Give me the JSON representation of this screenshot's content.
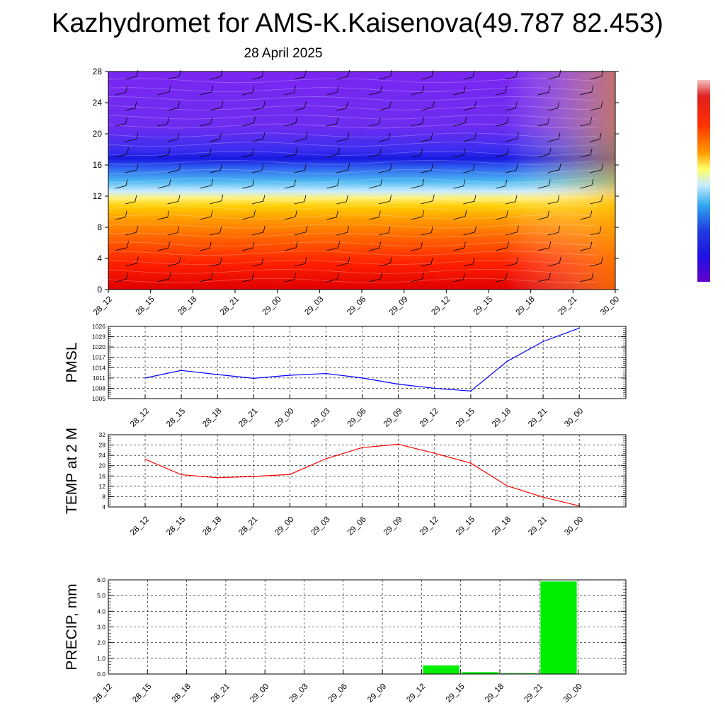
{
  "title": "Kazhydromet for AMS-K.Kaisenova(49.787 82.453)",
  "subtitle": "28 April 2025",
  "colors": {
    "pmsl_line": "#0000ff",
    "temp_line": "#ff0000",
    "precip_bar": "#00ee00",
    "colorbar_top": "#f0c0c0",
    "colorbar_mid": "#ffff66",
    "colorbar_bottom": "#6600cc"
  },
  "chart_data": [
    {
      "type": "heatmap",
      "title": "",
      "categories": [
        "28_12",
        "28_15",
        "28_18",
        "28_21",
        "29_00",
        "29_03",
        "29_06",
        "29_09",
        "29_12",
        "29_15",
        "29_18",
        "29_21",
        "30_00"
      ],
      "yticks": [
        0,
        4,
        8,
        12,
        16,
        20,
        24,
        28
      ],
      "ylim": [
        0,
        28
      ],
      "overlay": "wind barbs",
      "colorbar": "right"
    },
    {
      "type": "line",
      "ylabel": "PMSL",
      "categories": [
        "28_12",
        "28_15",
        "28_18",
        "28_21",
        "29_00",
        "29_03",
        "29_06",
        "29_09",
        "29_12",
        "29_15",
        "29_18",
        "29_21",
        "30_00"
      ],
      "values": [
        1011,
        1013.2,
        1012,
        1010.9,
        1011.8,
        1012.3,
        1011,
        1009.2,
        1008,
        1007.2,
        1015.8,
        1021.6,
        1025.5
      ],
      "yticks": [
        1005,
        1008,
        1011,
        1014,
        1017,
        1020,
        1023,
        1026
      ],
      "ylim": [
        1005,
        1026
      ],
      "grid": true
    },
    {
      "type": "line",
      "ylabel": "TEMP at 2 M",
      "categories": [
        "28_12",
        "28_15",
        "28_18",
        "28_21",
        "29_00",
        "29_03",
        "29_06",
        "29_09",
        "29_12",
        "29_15",
        "29_18",
        "29_21",
        "30_00"
      ],
      "values": [
        22.5,
        16.5,
        15.3,
        15.8,
        16.6,
        22.7,
        27,
        28.3,
        24.8,
        21,
        12.2,
        7.8,
        4.4
      ],
      "yticks": [
        4,
        8,
        12,
        16,
        20,
        24,
        28,
        32
      ],
      "ylim": [
        4,
        32
      ],
      "grid": true
    },
    {
      "type": "bar",
      "ylabel": "PRECIP, mm",
      "categories": [
        "28_12",
        "28_15",
        "28_18",
        "28_21",
        "29_00",
        "29_03",
        "29_06",
        "29_09",
        "29_12",
        "29_15",
        "29_18",
        "29_21",
        "30_00"
      ],
      "values": [
        0,
        0,
        0,
        0,
        0,
        0,
        0,
        0,
        0.55,
        0.12,
        0.05,
        5.9,
        0.02
      ],
      "yticks": [
        "0.0",
        "1.0",
        "2.0",
        "3.0",
        "4.0",
        "5.0",
        "6.0"
      ],
      "ylim": [
        0,
        6
      ],
      "grid": true
    }
  ]
}
